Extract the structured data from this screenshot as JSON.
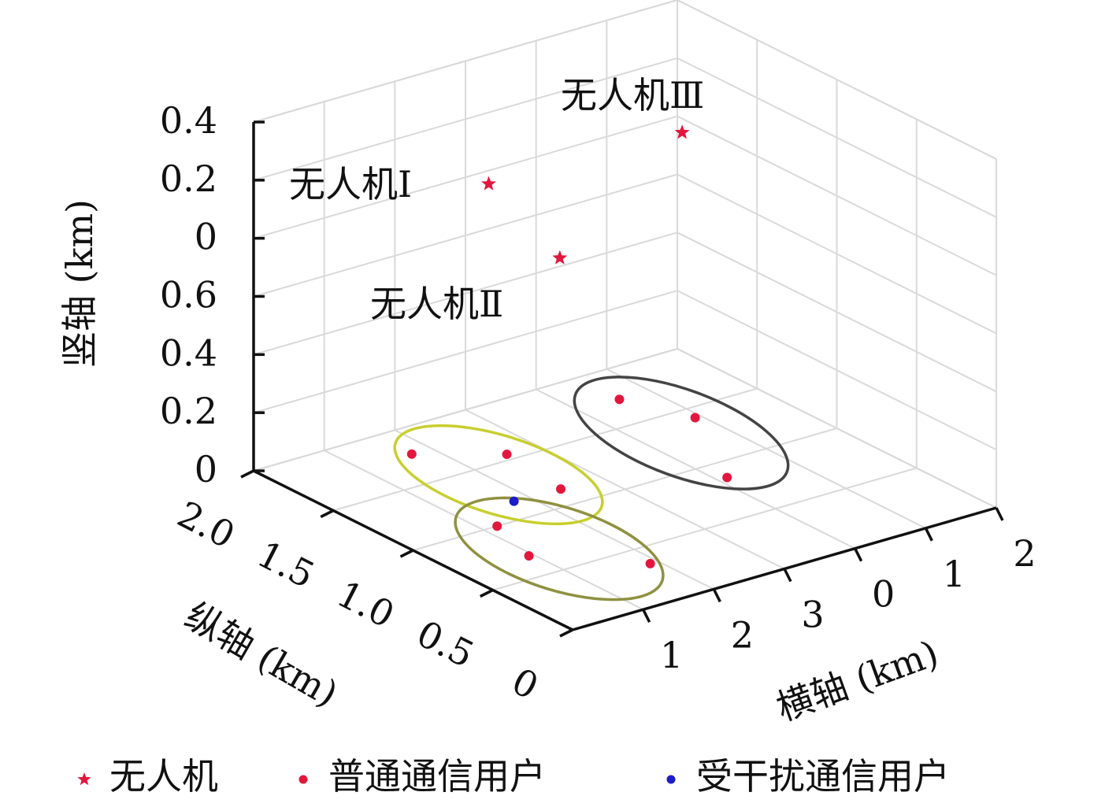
{
  "chart_data": {
    "type": "scatter3d",
    "xlabel": "横轴 (km)",
    "ylabel": "纵轴 (km)",
    "zlabel": "竖轴 (km)",
    "xlim": [
      0,
      6
    ],
    "ylim": [
      0,
      2.0
    ],
    "zlim": [
      0,
      1.2
    ],
    "xticks": [
      {
        "value": 1,
        "label": "1"
      },
      {
        "value": 2,
        "label": "2"
      },
      {
        "value": 3,
        "label": "3"
      },
      {
        "value": 4,
        "label": "0"
      },
      {
        "value": 5,
        "label": "1"
      },
      {
        "value": 6,
        "label": "2"
      }
    ],
    "yticks": [
      0,
      0.5,
      {
        "value": 1.0,
        "label": "1.0"
      },
      1.5,
      {
        "value": 2.0,
        "label": "2.0"
      }
    ],
    "zticks": [
      0,
      0.2,
      0.4,
      0.6,
      {
        "value": 0.8,
        "label": "0"
      },
      {
        "value": 1.0,
        "label": "0.2"
      },
      {
        "value": 1.2,
        "label": "0.4"
      }
    ],
    "grid": true,
    "legend": "bottom",
    "series": [
      {
        "name": "无人机",
        "color": "#e3173e",
        "marker": "star",
        "x": [
          2.2,
          1.4,
          4.6
        ],
        "y": [
          1.5,
          0.7,
          1.35
        ],
        "z": [
          0.97,
          0.99,
          1.02
        ]
      },
      {
        "name": "普通通信用户",
        "color": "#e3173e",
        "marker": "dot",
        "x": [
          1.72,
          2.57,
          2.43,
          1.19,
          0.94,
          1.89,
          4.57,
          4.92,
          4.13
        ],
        "y": [
          1.77,
          1.55,
          1.15,
          1.0,
          0.69,
          0.35,
          1.73,
          1.41,
          0.86
        ],
        "z": [
          0,
          0,
          0,
          0,
          0,
          0,
          0,
          0,
          0
        ]
      },
      {
        "name": "受干扰通信用户",
        "color": "#1c1cc8",
        "marker": "dot",
        "x": [
          1.79
        ],
        "y": [
          1.16
        ],
        "z": [
          0
        ]
      }
    ],
    "annotations": [
      "无人机Ⅰ",
      "无人机Ⅱ",
      "无人机Ⅲ"
    ]
  }
}
